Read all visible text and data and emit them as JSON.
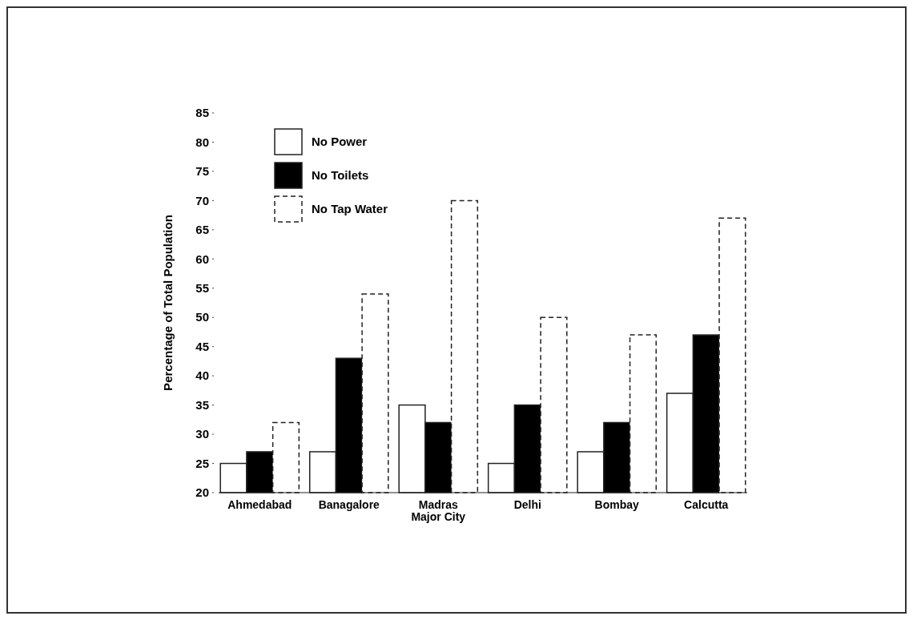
{
  "chart_data": {
    "type": "bar",
    "ylabel": "Percentage of Total Population",
    "categories": [
      "Ahmedabad",
      "Banagalore",
      "Madras\nMajor City",
      "Delhi",
      "Bombay",
      "Calcutta"
    ],
    "series": [
      {
        "name": "No Power",
        "color": "#ffffff",
        "values": [
          25,
          27,
          35,
          25,
          27,
          37
        ]
      },
      {
        "name": "No Toilets",
        "color": "#000000",
        "values": [
          27,
          43,
          32,
          35,
          32,
          47
        ]
      },
      {
        "name": "No Tap Water",
        "color": "#ffffff",
        "line_style": "dashed",
        "values": [
          32,
          54,
          70,
          50,
          47,
          67
        ]
      }
    ],
    "ylim": [
      20,
      85
    ],
    "yticks": [
      20,
      25,
      30,
      35,
      40,
      45,
      50,
      55,
      60,
      65,
      70,
      75,
      80,
      85
    ],
    "legend": "top left"
  }
}
